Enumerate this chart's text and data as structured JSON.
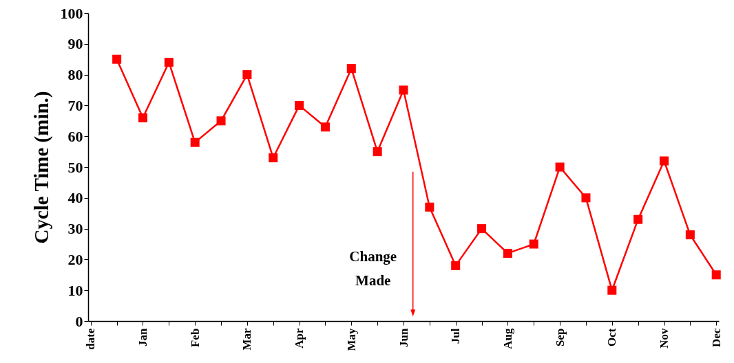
{
  "chart_data": {
    "type": "line",
    "ylabel": "Cycle Time (min.)",
    "categories": [
      "date",
      null,
      "Jan",
      null,
      "Feb",
      null,
      "Mar",
      null,
      "Apr",
      null,
      "May",
      null,
      "Jun",
      null,
      "Jul",
      null,
      "Aug",
      null,
      "Sep",
      null,
      "Oct",
      null,
      "Nov",
      null,
      "Dec"
    ],
    "series": [
      {
        "color": "#ff0000",
        "values": [
          null,
          85,
          66,
          84,
          58,
          65,
          80,
          53,
          70,
          63,
          82,
          55,
          75,
          37,
          18,
          30,
          22,
          25,
          50,
          40,
          10,
          33,
          52,
          28,
          15
        ]
      }
    ],
    "ylim": [
      0,
      100
    ],
    "yticks": [
      0,
      10,
      20,
      30,
      40,
      50,
      60,
      70,
      80,
      90,
      100
    ],
    "grid": false,
    "marker": "square",
    "line_style": "solid",
    "annotations": [
      "Change Made"
    ]
  }
}
